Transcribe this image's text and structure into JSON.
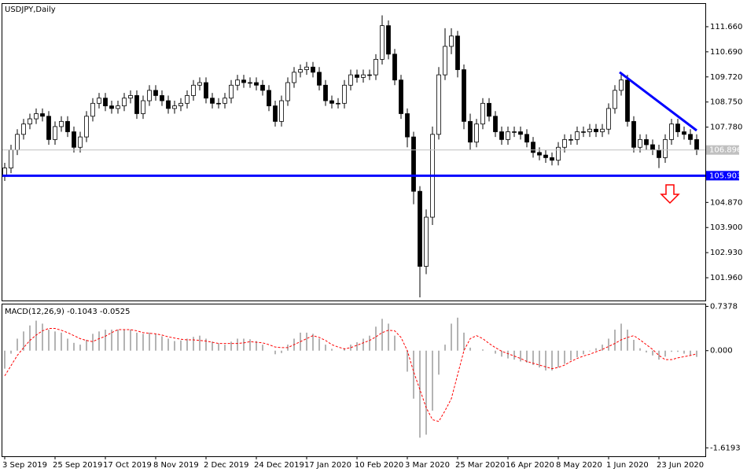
{
  "chart_data": [
    {
      "type": "candlestick",
      "title": "USDJPY,Daily",
      "categories": [
        "3 Sep 2019",
        null,
        null,
        null,
        null,
        null,
        null,
        null,
        "25 Sep 2019",
        null,
        null,
        null,
        null,
        null,
        null,
        null,
        "17 Oct 2019",
        null,
        null,
        null,
        null,
        null,
        null,
        null,
        "8 Nov 2019",
        null,
        null,
        null,
        null,
        null,
        null,
        null,
        "2 Dec 2019",
        null,
        null,
        null,
        null,
        null,
        null,
        null,
        "24 Dec 2019",
        null,
        null,
        null,
        null,
        null,
        null,
        null,
        "17 Jan 2020",
        null,
        null,
        null,
        null,
        null,
        null,
        null,
        "10 Feb 2020",
        null,
        null,
        null,
        null,
        null,
        null,
        null,
        "3 Mar 2020",
        null,
        null,
        null,
        null,
        null,
        null,
        null,
        "25 Mar 2020",
        null,
        null,
        null,
        null,
        null,
        null,
        null,
        "16 Apr 2020",
        null,
        null,
        null,
        null,
        null,
        null,
        null,
        "8 May 2020",
        null,
        null,
        null,
        null,
        null,
        null,
        null,
        "1 Jun 2020",
        null,
        null,
        null,
        null,
        null,
        null,
        null,
        "23 Jun 2020",
        null,
        null,
        null,
        null,
        null,
        null
      ],
      "open": [
        105.9,
        106.2,
        106.9,
        107.5,
        107.9,
        108.1,
        108.3,
        108.2,
        107.3,
        107.8,
        108.0,
        107.6,
        107.0,
        107.4,
        108.2,
        108.7,
        108.9,
        108.6,
        108.5,
        108.6,
        108.9,
        109.0,
        108.3,
        108.8,
        109.2,
        109.0,
        108.8,
        108.5,
        108.6,
        108.7,
        109.0,
        109.4,
        109.5,
        108.9,
        108.7,
        108.7,
        108.9,
        109.4,
        109.6,
        109.5,
        109.5,
        109.4,
        109.2,
        108.6,
        108.0,
        108.8,
        109.5,
        109.9,
        110.0,
        110.1,
        109.9,
        109.4,
        108.8,
        108.7,
        108.7,
        109.4,
        109.8,
        109.7,
        109.8,
        109.8,
        110.4,
        111.7,
        110.6,
        109.6,
        108.3,
        107.4,
        105.3,
        102.4,
        104.3,
        107.5,
        109.8,
        110.9,
        111.3,
        110.0,
        108.0,
        107.2,
        107.9,
        108.7,
        108.2,
        107.6,
        107.3,
        107.6,
        107.6,
        107.5,
        107.2,
        106.8,
        106.7,
        106.6,
        106.5,
        107.0,
        107.3,
        107.3,
        107.6,
        107.6,
        107.7,
        107.6,
        107.7,
        108.5,
        109.2,
        109.6,
        108.0,
        107.0,
        107.3,
        107.1,
        106.9,
        106.6,
        107.3,
        107.9,
        107.6,
        107.5,
        107.3
      ],
      "high": [
        106.4,
        107.1,
        107.7,
        108.1,
        108.3,
        108.5,
        108.5,
        108.4,
        108.0,
        108.2,
        108.2,
        107.8,
        107.6,
        108.4,
        108.9,
        109.1,
        109.1,
        108.8,
        108.8,
        109.1,
        109.2,
        109.2,
        109.0,
        109.4,
        109.4,
        109.2,
        109.0,
        108.8,
        108.9,
        109.2,
        109.6,
        109.7,
        109.7,
        109.1,
        108.9,
        109.1,
        109.6,
        109.8,
        109.8,
        109.7,
        109.7,
        109.6,
        109.4,
        108.8,
        109.0,
        109.7,
        110.1,
        110.2,
        110.3,
        110.3,
        110.1,
        109.6,
        109.0,
        108.9,
        109.6,
        110.0,
        110.0,
        110.0,
        110.0,
        110.6,
        112.1,
        111.9,
        110.8,
        109.8,
        108.5,
        107.6,
        105.5,
        104.6,
        107.8,
        110.1,
        111.6,
        111.6,
        111.5,
        110.2,
        108.3,
        108.1,
        108.9,
        108.9,
        108.4,
        107.8,
        107.8,
        107.8,
        107.8,
        107.7,
        107.4,
        107.0,
        106.9,
        106.8,
        107.2,
        107.5,
        107.5,
        107.8,
        107.8,
        107.9,
        107.9,
        107.9,
        108.7,
        109.4,
        109.85,
        109.8,
        108.2,
        107.5,
        107.5,
        107.3,
        107.1,
        107.5,
        108.1,
        108.1,
        107.8,
        107.7,
        107.5
      ],
      "low": [
        105.7,
        106.0,
        106.7,
        107.3,
        107.7,
        107.9,
        108.0,
        107.1,
        107.1,
        107.6,
        107.4,
        106.8,
        106.8,
        107.2,
        108.0,
        108.5,
        108.4,
        108.3,
        108.3,
        108.4,
        108.7,
        108.1,
        108.1,
        108.6,
        108.8,
        108.6,
        108.3,
        108.3,
        108.4,
        108.5,
        108.8,
        109.2,
        108.7,
        108.5,
        108.5,
        108.5,
        108.7,
        109.2,
        109.3,
        109.3,
        109.2,
        109.0,
        108.4,
        107.8,
        107.8,
        108.6,
        109.3,
        109.7,
        109.8,
        109.7,
        109.2,
        108.6,
        108.5,
        108.5,
        108.5,
        109.2,
        109.5,
        109.5,
        109.6,
        109.6,
        110.2,
        110.4,
        109.4,
        108.1,
        107.0,
        104.8,
        101.2,
        102.1,
        104.0,
        107.3,
        109.6,
        110.6,
        109.7,
        107.7,
        106.9,
        107.0,
        107.7,
        108.0,
        107.4,
        107.1,
        107.1,
        107.4,
        107.3,
        107.0,
        106.6,
        106.5,
        106.4,
        106.3,
        106.3,
        106.8,
        107.1,
        107.1,
        107.4,
        107.4,
        107.4,
        107.4,
        107.5,
        108.3,
        109.0,
        107.8,
        106.8,
        106.8,
        106.9,
        106.7,
        106.2,
        106.4,
        107.1,
        107.4,
        107.3,
        107.1,
        106.7
      ],
      "close": [
        106.2,
        106.9,
        107.5,
        107.9,
        108.1,
        108.3,
        108.2,
        107.3,
        107.8,
        108.0,
        107.6,
        107.0,
        107.4,
        108.2,
        108.7,
        108.9,
        108.6,
        108.5,
        108.6,
        108.9,
        109.0,
        108.3,
        108.8,
        109.2,
        109.0,
        108.8,
        108.5,
        108.6,
        108.7,
        109.0,
        109.4,
        109.5,
        108.9,
        108.7,
        108.7,
        108.9,
        109.4,
        109.6,
        109.5,
        109.5,
        109.4,
        109.2,
        108.6,
        108.0,
        108.8,
        109.5,
        109.9,
        110.0,
        110.1,
        109.9,
        109.4,
        108.8,
        108.7,
        108.7,
        109.4,
        109.8,
        109.7,
        109.8,
        109.8,
        110.4,
        111.7,
        110.6,
        109.6,
        108.3,
        107.4,
        105.3,
        102.4,
        104.3,
        107.5,
        109.8,
        110.9,
        111.3,
        110.0,
        108.0,
        107.2,
        107.9,
        108.7,
        108.2,
        107.6,
        107.3,
        107.6,
        107.6,
        107.5,
        107.2,
        106.8,
        106.7,
        106.6,
        106.5,
        107.0,
        107.3,
        107.3,
        107.6,
        107.6,
        107.7,
        107.6,
        107.7,
        108.5,
        109.2,
        109.6,
        108.0,
        107.0,
        107.3,
        107.1,
        106.9,
        106.6,
        107.3,
        107.9,
        107.6,
        107.5,
        107.3,
        106.896
      ],
      "ylim": [
        101.08,
        112.54
      ],
      "yticks": [
        {
          "value": 101.96,
          "label": "101.960"
        },
        {
          "value": 102.93,
          "label": "102.930"
        },
        {
          "value": 103.9,
          "label": "103.900"
        },
        {
          "value": 104.87,
          "label": "104.870"
        },
        {
          "value": 107.78,
          "label": "107.780"
        },
        {
          "value": 108.75,
          "label": "108.750"
        },
        {
          "value": 109.72,
          "label": "109.720"
        },
        {
          "value": 110.69,
          "label": "110.690"
        },
        {
          "value": 111.66,
          "label": "111.660"
        }
      ],
      "hlines": [
        {
          "value": 105.903,
          "color": "#0000ff"
        }
      ],
      "current_price": {
        "value": 106.896,
        "color": "#c0c0c0"
      },
      "trendline": {
        "x": [
          97.75,
          110
        ],
        "values": [
          109.9,
          107.65
        ],
        "color": "#0000ff"
      }
    },
    {
      "type": "macd",
      "title": "MACD(12,26,9) -0.1043 -0.0525",
      "histogram": {
        "color": "#b4b4b4",
        "values": [
          -0.3,
          -0.05,
          0.2,
          0.32,
          0.42,
          0.5,
          0.45,
          0.35,
          0.32,
          0.3,
          0.2,
          0.13,
          0.1,
          0.18,
          0.28,
          0.32,
          0.35,
          0.35,
          0.35,
          0.35,
          0.35,
          0.3,
          0.28,
          0.3,
          0.28,
          0.24,
          0.2,
          0.16,
          0.17,
          0.2,
          0.23,
          0.25,
          0.2,
          0.15,
          0.12,
          0.1,
          0.15,
          0.2,
          0.2,
          0.19,
          0.16,
          0.1,
          0.0,
          -0.06,
          -0.04,
          0.1,
          0.2,
          0.3,
          0.3,
          0.28,
          0.2,
          0.1,
          0.03,
          0.0,
          0.04,
          0.1,
          0.14,
          0.2,
          0.25,
          0.4,
          0.53,
          0.45,
          0.25,
          0.0,
          -0.35,
          -0.8,
          -1.45,
          -1.4,
          -1.0,
          -0.4,
          0.1,
          0.45,
          0.55,
          0.3,
          0.05,
          0.0,
          0.02,
          0.0,
          -0.05,
          -0.1,
          -0.13,
          -0.15,
          -0.18,
          -0.2,
          -0.24,
          -0.28,
          -0.33,
          -0.33,
          -0.28,
          -0.22,
          -0.16,
          -0.11,
          -0.06,
          -0.01,
          0.04,
          0.1,
          0.2,
          0.35,
          0.45,
          0.35,
          0.18,
          0.04,
          -0.03,
          -0.08,
          -0.15,
          -0.1,
          -0.02,
          -0.02,
          -0.05,
          -0.08,
          -0.1043
        ]
      },
      "signal": {
        "color": "#ff0000",
        "values": [
          -0.42,
          -0.25,
          -0.08,
          0.05,
          0.17,
          0.26,
          0.33,
          0.37,
          0.37,
          0.34,
          0.3,
          0.25,
          0.2,
          0.17,
          0.15,
          0.2,
          0.24,
          0.3,
          0.35,
          0.35,
          0.35,
          0.33,
          0.3,
          0.29,
          0.28,
          0.26,
          0.23,
          0.21,
          0.19,
          0.18,
          0.18,
          0.17,
          0.16,
          0.14,
          0.12,
          0.12,
          0.12,
          0.12,
          0.13,
          0.15,
          0.14,
          0.13,
          0.1,
          0.06,
          0.05,
          0.05,
          0.1,
          0.15,
          0.2,
          0.25,
          0.22,
          0.17,
          0.1,
          0.06,
          0.03,
          0.05,
          0.09,
          0.13,
          0.17,
          0.23,
          0.3,
          0.34,
          0.33,
          0.22,
          0.0,
          -0.35,
          -0.65,
          -0.95,
          -1.15,
          -1.18,
          -1.0,
          -0.8,
          -0.4,
          0.0,
          0.2,
          0.25,
          0.2,
          0.12,
          0.05,
          -0.01,
          -0.05,
          -0.09,
          -0.13,
          -0.18,
          -0.21,
          -0.24,
          -0.27,
          -0.3,
          -0.28,
          -0.24,
          -0.18,
          -0.13,
          -0.09,
          -0.06,
          -0.02,
          0.02,
          0.07,
          0.12,
          0.18,
          0.22,
          0.25,
          0.18,
          0.1,
          0.02,
          -0.08,
          -0.15,
          -0.15,
          -0.12,
          -0.1,
          -0.08,
          -0.0525
        ]
      },
      "ylim": [
        -1.76,
        0.77
      ],
      "yticks": [
        0.7378,
        {
          "value": 0,
          "label": "0.000"
        },
        -1.6193
      ]
    }
  ]
}
